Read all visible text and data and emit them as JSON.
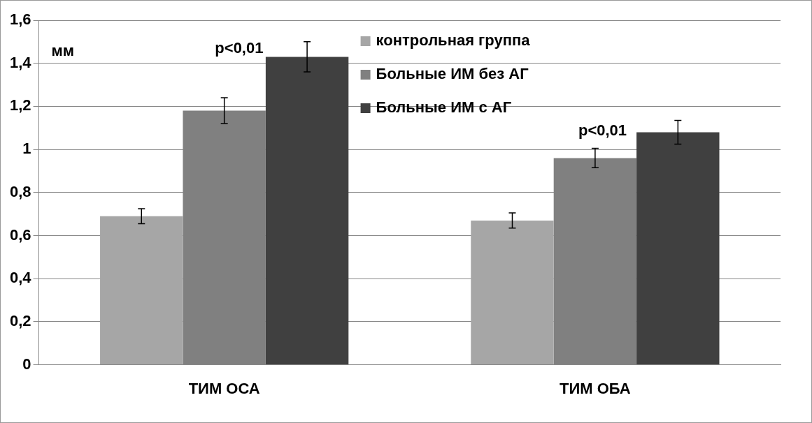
{
  "chart_data": {
    "type": "bar",
    "ylabel": "мм",
    "categories": [
      "ТИМ ОСА",
      "ТИМ ОБА"
    ],
    "series": [
      {
        "name": "контрольная группа",
        "color": "#a6a6a6",
        "values": [
          0.69,
          0.67
        ],
        "errors": [
          0.035,
          0.035
        ]
      },
      {
        "name": "Больные ИМ без АГ",
        "color": "#808080",
        "values": [
          1.18,
          0.96
        ],
        "errors": [
          0.06,
          0.045
        ]
      },
      {
        "name": "Больные ИМ с АГ",
        "color": "#404040",
        "values": [
          1.43,
          1.08
        ],
        "errors": [
          0.07,
          0.055
        ]
      }
    ],
    "ylim": [
      0,
      1.6
    ],
    "yticks": [
      0,
      {
        "value": 0.2,
        "label": "0,2"
      },
      {
        "value": 0.4,
        "label": "0,4"
      },
      {
        "value": 0.6,
        "label": "0,6"
      },
      {
        "value": 0.8,
        "label": "0,8"
      },
      1,
      {
        "value": 1.2,
        "label": "1,2"
      },
      {
        "value": 1.4,
        "label": "1,4"
      },
      {
        "value": 1.6,
        "label": "1,6"
      }
    ],
    "grid": "y",
    "legend": "top right",
    "annotations": [
      "p<0,01",
      "p<0,01"
    ]
  }
}
